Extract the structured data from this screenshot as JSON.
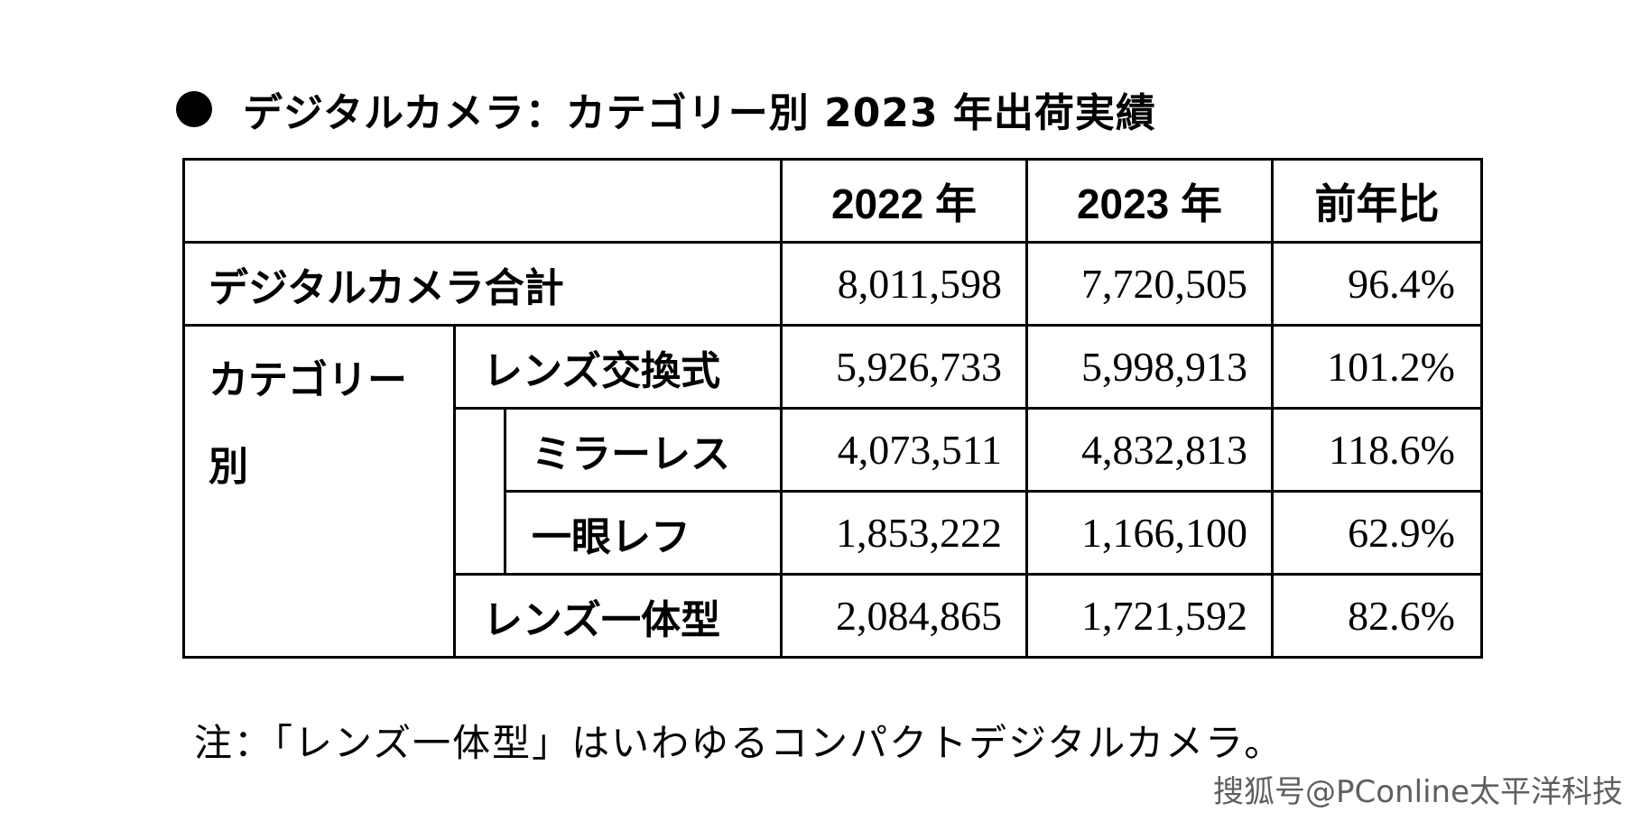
{
  "title": "デジタルカメラ：カテゴリー別 2023 年出荷実績",
  "table": {
    "headers": {
      "year_2022": "2022 年",
      "year_2023": "2023 年",
      "yoy": "前年比"
    },
    "total": {
      "label": "デジタルカメラ合計",
      "y2022": "8,011,598",
      "y2023": "7,720,505",
      "yoy": "96.4%"
    },
    "category_label_line1": "カテゴリー",
    "category_label_line2": "別",
    "interchangeable": {
      "label": "レンズ交換式",
      "y2022": "5,926,733",
      "y2023": "5,998,913",
      "yoy": "101.2%"
    },
    "mirrorless": {
      "label": "ミラーレス",
      "y2022": "4,073,511",
      "y2023": "4,832,813",
      "yoy": "118.6%"
    },
    "slr": {
      "label": "一眼レフ",
      "y2022": "1,853,222",
      "y2023": "1,166,100",
      "yoy": "62.9%"
    },
    "fixed_lens": {
      "label": "レンズ一体型",
      "y2022": "2,084,865",
      "y2023": "1,721,592",
      "yoy": "82.6%"
    }
  },
  "note": "注：「レンズ一体型」はいわゆるコンパクトデジタルカメラ。",
  "watermark": "搜狐号@PConline太平洋科技"
}
